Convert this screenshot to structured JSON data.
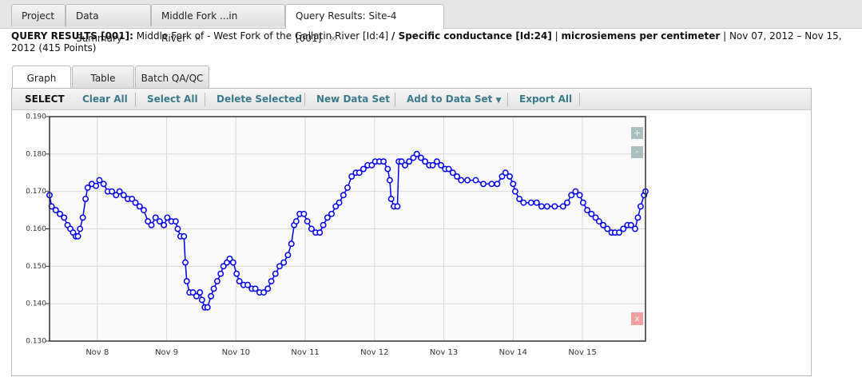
{
  "tabs": [
    "Project",
    "Data Summary",
    "Middle Fork ...in River",
    "Query Results: Site-4 [001]"
  ],
  "header": {
    "parts": [
      "QUERY RESULTS [001]:",
      "Middle Fork of - West Fork of the Gallatin River [Id:4]",
      "/ Specific conductance [Id:24]",
      "|",
      "microsiemens per centimeter",
      "|",
      "Nov 07, 2012 – Nov 15, 2012 (415 Points)"
    ]
  },
  "subtabs": [
    "Graph",
    "Table",
    "Batch QA/QC"
  ],
  "toolbar": {
    "label": "SELECT",
    "buttons": [
      "Clear All",
      "Select All",
      "Delete Selected",
      "New Data Set",
      "Add to Data Set",
      "Export All"
    ]
  },
  "zoom": {
    "in": "+",
    "out": "-",
    "close": "x"
  },
  "chart_data": {
    "type": "line",
    "color": "#0000ee",
    "markers": "circle",
    "grid": true,
    "xlim": [
      7.31,
      15.91
    ],
    "xticks": [
      {
        "value": 8,
        "label": "Nov 8"
      },
      {
        "value": 9,
        "label": "Nov 9"
      },
      {
        "value": 10,
        "label": "Nov 10"
      },
      {
        "value": 11,
        "label": "Nov 11"
      },
      {
        "value": 12,
        "label": "Nov 12"
      },
      {
        "value": 13,
        "label": "Nov 13"
      },
      {
        "value": 14,
        "label": "Nov 14"
      },
      {
        "value": 15,
        "label": "Nov 15"
      }
    ],
    "ylim": [
      0.13,
      0.19
    ],
    "yticks": [
      {
        "value": 0.13,
        "label": "0.130"
      },
      {
        "value": 0.14,
        "label": "0.140"
      },
      {
        "value": 0.15,
        "label": "0.150"
      },
      {
        "value": 0.16,
        "label": "0.160"
      },
      {
        "value": 0.17,
        "label": "0.170"
      },
      {
        "value": 0.18,
        "label": "0.180"
      },
      {
        "value": 0.19,
        "label": "0.190"
      }
    ],
    "x": [
      7.31,
      7.34,
      7.4,
      7.46,
      7.52,
      7.57,
      7.61,
      7.65,
      7.69,
      7.72,
      7.75,
      7.79,
      7.83,
      7.86,
      7.92,
      7.98,
      8.03,
      8.09,
      8.15,
      8.21,
      8.27,
      8.32,
      8.38,
      8.44,
      8.5,
      8.55,
      8.61,
      8.67,
      8.73,
      8.78,
      8.84,
      8.9,
      8.96,
      9.01,
      9.07,
      9.13,
      9.16,
      9.2,
      9.25,
      9.27,
      9.29,
      9.33,
      9.38,
      9.43,
      9.48,
      9.51,
      9.55,
      9.59,
      9.64,
      9.68,
      9.73,
      9.78,
      9.82,
      9.87,
      9.91,
      9.96,
      10.01,
      10.05,
      10.11,
      10.17,
      10.23,
      10.28,
      10.34,
      10.4,
      10.46,
      10.51,
      10.57,
      10.63,
      10.69,
      10.75,
      10.8,
      10.84,
      10.87,
      10.92,
      10.98,
      11.03,
      11.09,
      11.15,
      11.21,
      11.26,
      11.32,
      11.38,
      11.44,
      11.49,
      11.55,
      11.61,
      11.67,
      11.73,
      11.78,
      11.84,
      11.9,
      11.96,
      12.01,
      12.07,
      12.13,
      12.19,
      12.22,
      12.24,
      12.28,
      12.33,
      12.35,
      12.39,
      12.44,
      12.5,
      12.56,
      12.61,
      12.67,
      12.73,
      12.79,
      12.84,
      12.9,
      12.96,
      13.02,
      13.07,
      13.13,
      13.19,
      13.25,
      13.34,
      13.46,
      13.57,
      13.69,
      13.77,
      13.84,
      13.89,
      13.95,
      14.0,
      14.03,
      14.09,
      14.15,
      14.26,
      14.34,
      14.41,
      14.49,
      14.6,
      14.72,
      14.78,
      14.84,
      14.9,
      14.96,
      15.01,
      15.07,
      15.13,
      15.19,
      15.24,
      15.3,
      15.36,
      15.42,
      15.47,
      15.53,
      15.59,
      15.65,
      15.7,
      15.76,
      15.8,
      15.84,
      15.89,
      15.91
    ],
    "values": [
      0.169,
      0.166,
      0.165,
      0.164,
      0.163,
      0.161,
      0.16,
      0.159,
      0.158,
      0.158,
      0.16,
      0.163,
      0.168,
      0.171,
      0.172,
      0.1715,
      0.173,
      0.172,
      0.17,
      0.17,
      0.169,
      0.17,
      0.169,
      0.168,
      0.168,
      0.167,
      0.166,
      0.165,
      0.162,
      0.161,
      0.163,
      0.162,
      0.161,
      0.163,
      0.162,
      0.162,
      0.16,
      0.158,
      0.158,
      0.151,
      0.146,
      0.143,
      0.143,
      0.142,
      0.143,
      0.141,
      0.139,
      0.139,
      0.142,
      0.144,
      0.146,
      0.148,
      0.15,
      0.151,
      0.152,
      0.151,
      0.148,
      0.146,
      0.145,
      0.145,
      0.144,
      0.144,
      0.143,
      0.143,
      0.144,
      0.146,
      0.148,
      0.15,
      0.151,
      0.153,
      0.156,
      0.161,
      0.162,
      0.164,
      0.164,
      0.162,
      0.16,
      0.159,
      0.159,
      0.161,
      0.163,
      0.164,
      0.166,
      0.167,
      0.169,
      0.171,
      0.174,
      0.175,
      0.175,
      0.176,
      0.177,
      0.177,
      0.178,
      0.178,
      0.178,
      0.176,
      0.173,
      0.168,
      0.166,
      0.166,
      0.178,
      0.178,
      0.177,
      0.178,
      0.179,
      0.18,
      0.179,
      0.178,
      0.177,
      0.177,
      0.178,
      0.177,
      0.176,
      0.176,
      0.175,
      0.174,
      0.173,
      0.173,
      0.173,
      0.172,
      0.172,
      0.172,
      0.174,
      0.175,
      0.174,
      0.172,
      0.17,
      0.168,
      0.167,
      0.167,
      0.167,
      0.166,
      0.166,
      0.166,
      0.166,
      0.167,
      0.169,
      0.17,
      0.169,
      0.167,
      0.165,
      0.164,
      0.163,
      0.162,
      0.161,
      0.16,
      0.159,
      0.159,
      0.159,
      0.16,
      0.161,
      0.161,
      0.16,
      0.163,
      0.166,
      0.169,
      0.17
    ]
  }
}
